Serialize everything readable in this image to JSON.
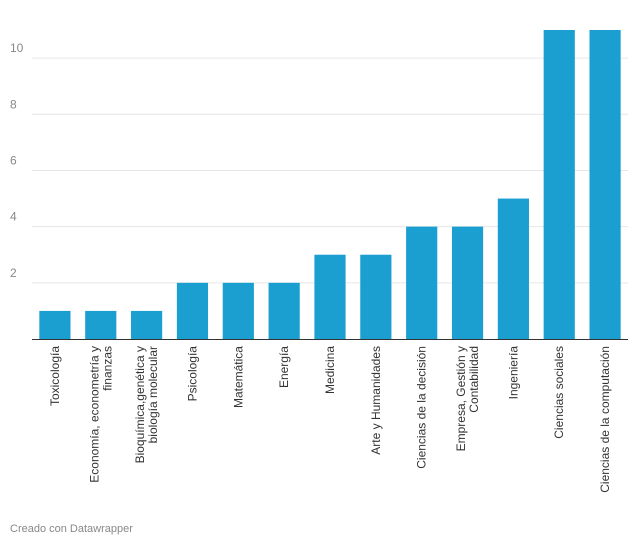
{
  "chart_data": {
    "type": "bar",
    "categories": [
      [
        "Toxicología"
      ],
      [
        "Economía, econometría y",
        "finanzas"
      ],
      [
        "Bioquímica,genética y",
        "biología molecular"
      ],
      [
        "Psicología"
      ],
      [
        "Matemática"
      ],
      [
        "Energía"
      ],
      [
        "Medicina"
      ],
      [
        "Arte y Humanidades"
      ],
      [
        "Ciencias de la decisión"
      ],
      [
        "Empresa, Gestión y",
        "Contabilidad"
      ],
      [
        "Ingeniería"
      ],
      [
        "Ciencias sociales"
      ],
      [
        "Ciencias de la computación"
      ]
    ],
    "values": [
      1,
      1,
      1,
      2,
      2,
      2,
      3,
      3,
      4,
      4,
      5,
      11,
      11
    ],
    "yticks": [
      2,
      4,
      6,
      8,
      10
    ],
    "ylim": [
      0,
      11.5
    ],
    "grid": true,
    "bar_color": "#1a9fd0"
  },
  "footer": {
    "credit": "Creado con Datawrapper"
  }
}
